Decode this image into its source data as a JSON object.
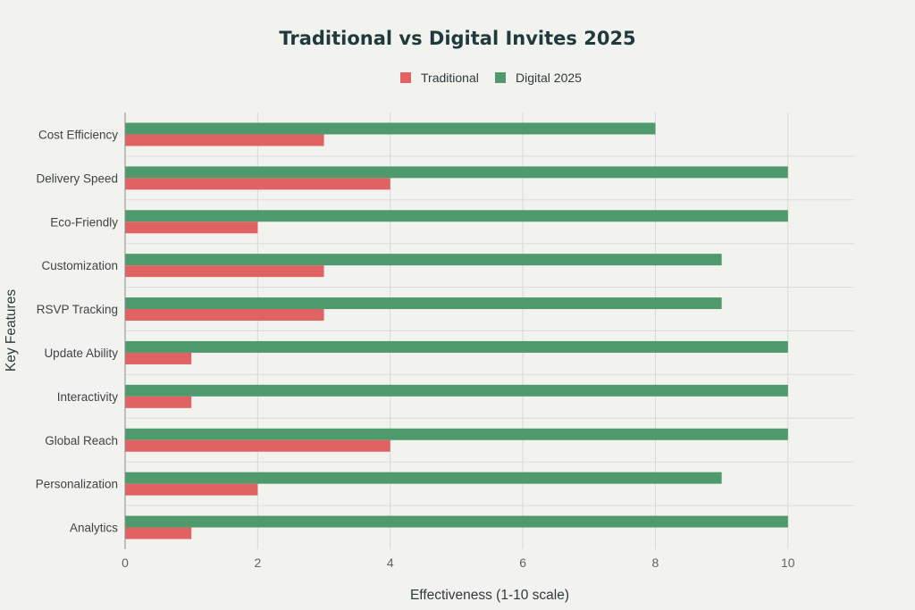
{
  "chart_data": {
    "type": "bar",
    "orientation": "horizontal",
    "title": "Traditional vs Digital Invites 2025",
    "xlabel": "Effectiveness (1-10 scale)",
    "ylabel": "Key Features",
    "xlim": [
      0,
      11
    ],
    "xticks": [
      0,
      2,
      4,
      6,
      8,
      10
    ],
    "grid": true,
    "legend_position": "top-center",
    "categories": [
      "Cost Efficiency",
      "Delivery Speed",
      "Eco-Friendly",
      "Customization",
      "RSVP Tracking",
      "Update Ability",
      "Interactivity",
      "Global Reach",
      "Personalization",
      "Analytics"
    ],
    "series": [
      {
        "name": "Traditional",
        "color": "#e06262",
        "values": [
          3,
          4,
          2,
          3,
          3,
          1,
          1,
          4,
          2,
          1
        ]
      },
      {
        "name": "Digital 2025",
        "color": "#4f9a6c",
        "values": [
          8,
          10,
          10,
          9,
          9,
          10,
          10,
          10,
          9,
          10
        ]
      }
    ]
  }
}
